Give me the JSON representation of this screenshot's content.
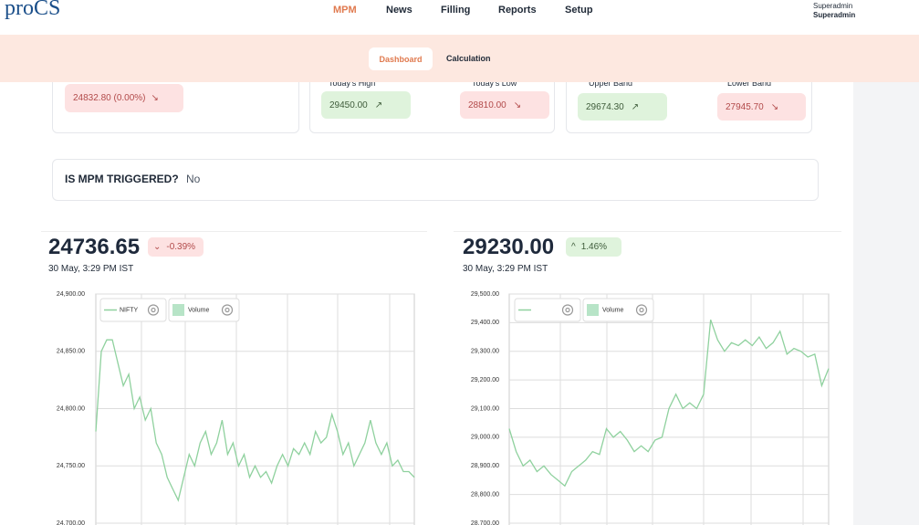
{
  "header": {
    "logo": "proCS",
    "nav": [
      "MPM",
      "News",
      "Filling",
      "Reports",
      "Setup"
    ],
    "user": {
      "name": "Superadmin",
      "role": "Superadmin"
    }
  },
  "tabs": [
    "Dashboard",
    "Calculation"
  ],
  "cards": [
    {
      "value": "24832.80 (0.00%)"
    },
    {
      "high_label": "Today's High",
      "high": "29450.00",
      "low_label": "Today's Low",
      "low": "28810.00"
    },
    {
      "upper_label": "Upper Band",
      "upper": "29674.30",
      "lower_label": "Lower Band",
      "lower": "27945.70"
    }
  ],
  "trigger": {
    "label": "IS MPM TRIGGERED?",
    "value": "No"
  },
  "chart_data": [
    {
      "type": "line",
      "price": "24736.65",
      "change": "-0.39%",
      "timestamp": "30 May, 3:29 PM IST",
      "volume_legend": "Volume",
      "series": [
        {
          "name": "NIFTY",
          "color": "#8fd19e",
          "values": [
            24780,
            24850,
            24860,
            24860,
            24840,
            24820,
            24830,
            24800,
            24810,
            24790,
            24800,
            24770,
            24760,
            24740,
            24730,
            24720,
            24740,
            24760,
            24750,
            24770,
            24780,
            24760,
            24770,
            24790,
            24760,
            24770,
            24750,
            24760,
            24740,
            24750,
            24740,
            24745,
            24735,
            24750,
            24760,
            24750,
            24765,
            24760,
            24770,
            24760,
            24780,
            24770,
            24775,
            24795,
            24780,
            24760,
            24770,
            24750,
            24760,
            24770,
            24790,
            24770,
            24760,
            24770,
            24750,
            24755,
            24745,
            24745,
            24740
          ]
        }
      ],
      "ylim": [
        24700,
        24900
      ],
      "yticks": [
        {
          "value": 24700,
          "label": "24,700.00"
        },
        {
          "value": 24750,
          "label": "24,750.00"
        },
        {
          "value": 24800,
          "label": "24,800.00"
        },
        {
          "value": 24850,
          "label": "24,850.00"
        },
        {
          "value": 24900,
          "label": "24,900.00"
        }
      ]
    },
    {
      "type": "line",
      "price": "29230.00",
      "change": "1.46%",
      "timestamp": "30 May, 3:29 PM IST",
      "volume_legend": "Volume",
      "series": [
        {
          "color": "#8fd19e",
          "values": [
            29030,
            28950,
            28900,
            28920,
            28880,
            28900,
            28870,
            28850,
            28830,
            28880,
            28900,
            28920,
            28950,
            28940,
            29030,
            29000,
            29020,
            28990,
            28950,
            28970,
            28950,
            28990,
            29000,
            29100,
            29150,
            29100,
            29120,
            29100,
            29150,
            29410,
            29340,
            29300,
            29330,
            29320,
            29340,
            29320,
            29350,
            29310,
            29330,
            29370,
            29290,
            29310,
            29300,
            29280,
            29290,
            29180,
            29240
          ]
        }
      ],
      "ylim": [
        28700,
        29500
      ],
      "yticks": [
        {
          "value": 28700,
          "label": "28,700.00"
        },
        {
          "value": 28800,
          "label": "28,800.00"
        },
        {
          "value": 28900,
          "label": "28,900.00"
        },
        {
          "value": 29000,
          "label": "29,000.00"
        },
        {
          "value": 29100,
          "label": "29,100.00"
        },
        {
          "value": 29200,
          "label": "29,200.00"
        },
        {
          "value": 29300,
          "label": "29,300.00"
        },
        {
          "value": 29400,
          "label": "29,400.00"
        },
        {
          "value": 29500,
          "label": "29,500.00"
        }
      ]
    }
  ]
}
